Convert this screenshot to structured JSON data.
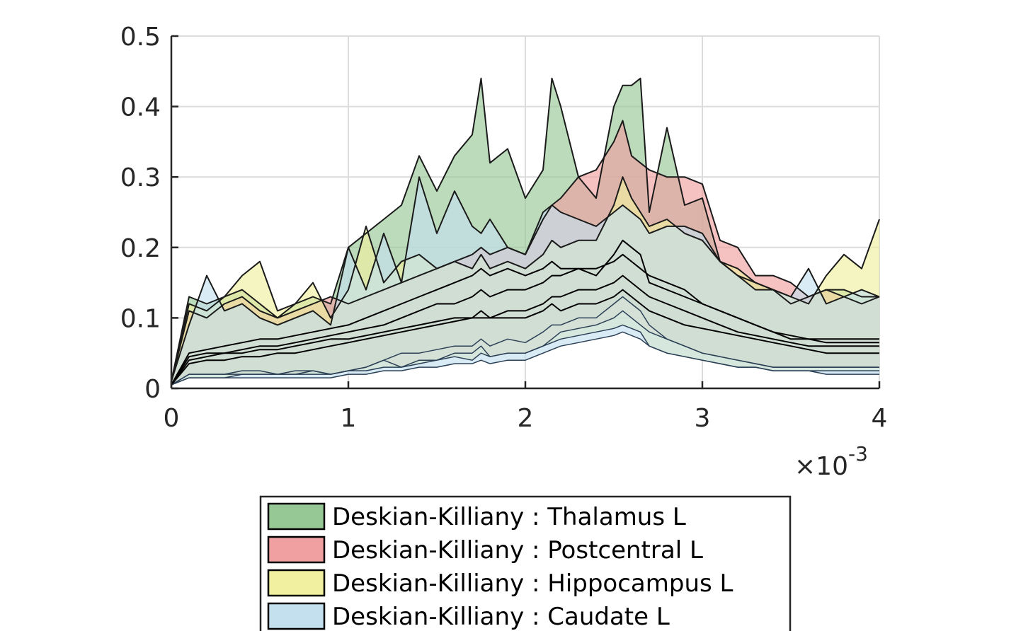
{
  "chart_data": {
    "type": "area",
    "title": "",
    "xlabel": "",
    "ylabel": "",
    "x_exponent_label": "×10",
    "x_exponent_power": "-3",
    "xlim": [
      0,
      4
    ],
    "ylim": [
      0,
      0.5
    ],
    "x_ticks": [
      0,
      1,
      2,
      3,
      4
    ],
    "x_tick_labels": [
      "0",
      "1",
      "2",
      "3",
      "4"
    ],
    "y_ticks": [
      0,
      0.1,
      0.2,
      0.3,
      0.4,
      0.5
    ],
    "y_tick_labels": [
      "0",
      "0.1",
      "0.2",
      "0.3",
      "0.4",
      "0.5"
    ],
    "grid": true,
    "legend_position": "bottom",
    "x": [
      0,
      0.1,
      0.2,
      0.3,
      0.4,
      0.5,
      0.6,
      0.7,
      0.8,
      0.9,
      1.0,
      1.1,
      1.2,
      1.3,
      1.4,
      1.5,
      1.6,
      1.7,
      1.75,
      1.8,
      1.9,
      2.0,
      2.1,
      2.15,
      2.2,
      2.3,
      2.4,
      2.5,
      2.55,
      2.6,
      2.65,
      2.7,
      2.8,
      2.9,
      3.0,
      3.1,
      3.2,
      3.3,
      3.4,
      3.5,
      3.6,
      3.7,
      3.8,
      3.9,
      4.0
    ],
    "series": [
      {
        "name": "Deskian-Killiany : Thalamus L",
        "color": "#96c896",
        "upper": [
          0.01,
          0.13,
          0.12,
          0.13,
          0.14,
          0.12,
          0.1,
          0.12,
          0.13,
          0.12,
          0.2,
          0.22,
          0.24,
          0.26,
          0.33,
          0.28,
          0.33,
          0.36,
          0.44,
          0.32,
          0.34,
          0.27,
          0.31,
          0.44,
          0.4,
          0.3,
          0.27,
          0.4,
          0.43,
          0.43,
          0.44,
          0.25,
          0.37,
          0.26,
          0.27,
          0.18,
          0.16,
          0.15,
          0.14,
          0.12,
          0.13,
          0.14,
          0.14,
          0.13,
          0.13
        ],
        "mean": [
          0.005,
          0.05,
          0.055,
          0.06,
          0.065,
          0.07,
          0.07,
          0.075,
          0.08,
          0.085,
          0.09,
          0.1,
          0.11,
          0.12,
          0.13,
          0.14,
          0.15,
          0.16,
          0.17,
          0.16,
          0.17,
          0.16,
          0.17,
          0.18,
          0.17,
          0.17,
          0.16,
          0.19,
          0.21,
          0.2,
          0.19,
          0.15,
          0.14,
          0.13,
          0.12,
          0.11,
          0.1,
          0.09,
          0.08,
          0.075,
          0.07,
          0.07,
          0.07,
          0.07,
          0.07
        ],
        "lower": [
          0.005,
          0.02,
          0.02,
          0.02,
          0.025,
          0.025,
          0.02,
          0.025,
          0.025,
          0.02,
          0.025,
          0.03,
          0.04,
          0.05,
          0.05,
          0.055,
          0.06,
          0.06,
          0.07,
          0.06,
          0.07,
          0.065,
          0.08,
          0.09,
          0.09,
          0.1,
          0.1,
          0.12,
          0.13,
          0.12,
          0.11,
          0.09,
          0.07,
          0.06,
          0.05,
          0.045,
          0.04,
          0.035,
          0.03,
          0.03,
          0.03,
          0.03,
          0.03,
          0.03,
          0.03
        ]
      },
      {
        "name": "Deskian-Killiany : Postcentral L",
        "color": "#f0a0a0",
        "upper": [
          0.01,
          0.11,
          0.1,
          0.12,
          0.13,
          0.11,
          0.1,
          0.11,
          0.12,
          0.13,
          0.12,
          0.13,
          0.14,
          0.15,
          0.16,
          0.17,
          0.18,
          0.19,
          0.2,
          0.19,
          0.2,
          0.19,
          0.24,
          0.26,
          0.27,
          0.3,
          0.31,
          0.35,
          0.38,
          0.33,
          0.32,
          0.31,
          0.3,
          0.3,
          0.29,
          0.21,
          0.2,
          0.16,
          0.16,
          0.15,
          0.13,
          0.14,
          0.13,
          0.12,
          0.13
        ],
        "mean": [
          0.005,
          0.045,
          0.05,
          0.05,
          0.055,
          0.06,
          0.06,
          0.065,
          0.07,
          0.075,
          0.08,
          0.085,
          0.09,
          0.1,
          0.11,
          0.12,
          0.12,
          0.13,
          0.14,
          0.13,
          0.14,
          0.14,
          0.15,
          0.16,
          0.16,
          0.17,
          0.17,
          0.18,
          0.19,
          0.18,
          0.17,
          0.16,
          0.15,
          0.14,
          0.12,
          0.11,
          0.1,
          0.09,
          0.08,
          0.07,
          0.07,
          0.065,
          0.065,
          0.065,
          0.065
        ],
        "lower": [
          0.005,
          0.02,
          0.02,
          0.02,
          0.02,
          0.02,
          0.02,
          0.02,
          0.025,
          0.02,
          0.025,
          0.03,
          0.04,
          0.03,
          0.04,
          0.04,
          0.05,
          0.05,
          0.06,
          0.045,
          0.05,
          0.05,
          0.06,
          0.07,
          0.08,
          0.085,
          0.09,
          0.1,
          0.11,
          0.1,
          0.09,
          0.08,
          0.07,
          0.06,
          0.05,
          0.045,
          0.04,
          0.035,
          0.03,
          0.03,
          0.03,
          0.03,
          0.03,
          0.03,
          0.03
        ]
      },
      {
        "name": "Deskian-Killiany : Hippocampus L",
        "color": "#f0f0a0",
        "upper": [
          0.01,
          0.12,
          0.11,
          0.13,
          0.16,
          0.18,
          0.11,
          0.12,
          0.15,
          0.1,
          0.14,
          0.23,
          0.15,
          0.18,
          0.19,
          0.17,
          0.18,
          0.17,
          0.19,
          0.17,
          0.18,
          0.17,
          0.19,
          0.21,
          0.2,
          0.21,
          0.21,
          0.26,
          0.3,
          0.27,
          0.25,
          0.23,
          0.24,
          0.22,
          0.21,
          0.18,
          0.17,
          0.15,
          0.14,
          0.13,
          0.12,
          0.16,
          0.19,
          0.17,
          0.24
        ],
        "mean": [
          0.005,
          0.04,
          0.045,
          0.05,
          0.05,
          0.055,
          0.055,
          0.06,
          0.065,
          0.07,
          0.07,
          0.075,
          0.08,
          0.085,
          0.09,
          0.095,
          0.1,
          0.1,
          0.11,
          0.1,
          0.11,
          0.11,
          0.12,
          0.13,
          0.13,
          0.14,
          0.14,
          0.15,
          0.16,
          0.15,
          0.14,
          0.13,
          0.12,
          0.11,
          0.1,
          0.09,
          0.08,
          0.075,
          0.07,
          0.065,
          0.06,
          0.06,
          0.06,
          0.06,
          0.06
        ],
        "lower": [
          0.005,
          0.015,
          0.015,
          0.015,
          0.02,
          0.02,
          0.02,
          0.02,
          0.02,
          0.02,
          0.025,
          0.025,
          0.03,
          0.03,
          0.035,
          0.04,
          0.045,
          0.04,
          0.05,
          0.045,
          0.05,
          0.05,
          0.06,
          0.065,
          0.07,
          0.075,
          0.08,
          0.085,
          0.09,
          0.085,
          0.08,
          0.06,
          0.05,
          0.045,
          0.04,
          0.035,
          0.03,
          0.03,
          0.025,
          0.025,
          0.025,
          0.025,
          0.025,
          0.025,
          0.025
        ]
      },
      {
        "name": "Deskian-Killiany : Caudate L",
        "color": "#c4e0ee",
        "upper": [
          0.01,
          0.09,
          0.16,
          0.11,
          0.12,
          0.1,
          0.09,
          0.1,
          0.11,
          0.09,
          0.2,
          0.14,
          0.22,
          0.15,
          0.3,
          0.22,
          0.28,
          0.23,
          0.22,
          0.24,
          0.2,
          0.19,
          0.25,
          0.26,
          0.25,
          0.24,
          0.23,
          0.25,
          0.26,
          0.25,
          0.24,
          0.22,
          0.23,
          0.23,
          0.22,
          0.18,
          0.16,
          0.14,
          0.14,
          0.13,
          0.17,
          0.12,
          0.13,
          0.14,
          0.13
        ],
        "mean": [
          0.005,
          0.035,
          0.04,
          0.04,
          0.045,
          0.045,
          0.05,
          0.05,
          0.055,
          0.06,
          0.065,
          0.07,
          0.075,
          0.08,
          0.085,
          0.09,
          0.095,
          0.1,
          0.1,
          0.1,
          0.1,
          0.1,
          0.11,
          0.12,
          0.11,
          0.12,
          0.12,
          0.13,
          0.14,
          0.13,
          0.12,
          0.11,
          0.1,
          0.09,
          0.085,
          0.08,
          0.075,
          0.07,
          0.065,
          0.06,
          0.055,
          0.05,
          0.05,
          0.05,
          0.05
        ],
        "lower": [
          0.005,
          0.015,
          0.015,
          0.015,
          0.015,
          0.015,
          0.015,
          0.015,
          0.015,
          0.015,
          0.02,
          0.02,
          0.025,
          0.025,
          0.03,
          0.03,
          0.035,
          0.035,
          0.04,
          0.035,
          0.04,
          0.04,
          0.05,
          0.055,
          0.06,
          0.065,
          0.07,
          0.075,
          0.08,
          0.075,
          0.07,
          0.06,
          0.05,
          0.045,
          0.04,
          0.035,
          0.03,
          0.03,
          0.025,
          0.025,
          0.025,
          0.02,
          0.02,
          0.02,
          0.02
        ]
      }
    ]
  }
}
